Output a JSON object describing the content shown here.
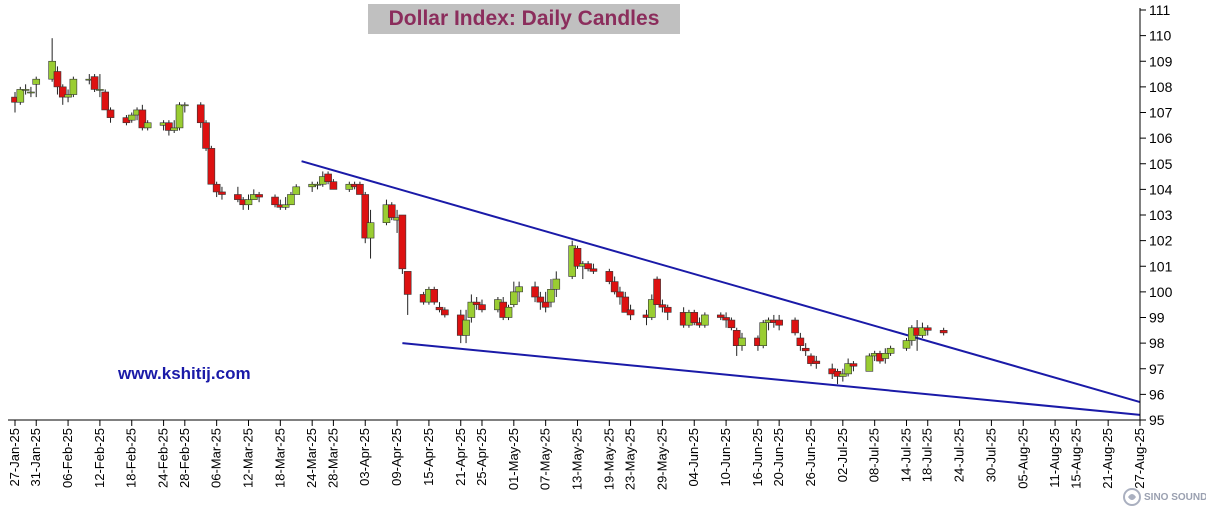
{
  "chart_data": {
    "type": "candlestick",
    "title": "Dollar Index: Daily Candles",
    "ylim": [
      95,
      111
    ],
    "y_ticks": [
      95,
      96,
      97,
      98,
      99,
      100,
      101,
      102,
      103,
      104,
      105,
      106,
      107,
      108,
      109,
      110,
      111
    ],
    "y_axis_side": "right",
    "grid": false,
    "x_range": [
      "2025-01-27",
      "2025-08-27"
    ],
    "x_tick_labels": [
      "27-Jan-25",
      "31-Jan-25",
      "06-Feb-25",
      "12-Feb-25",
      "18-Feb-25",
      "24-Feb-25",
      "28-Feb-25",
      "06-Mar-25",
      "12-Mar-25",
      "18-Mar-25",
      "24-Mar-25",
      "28-Mar-25",
      "03-Apr-25",
      "09-Apr-25",
      "15-Apr-25",
      "21-Apr-25",
      "25-Apr-25",
      "01-May-25",
      "07-May-25",
      "13-May-25",
      "19-May-25",
      "23-May-25",
      "29-May-25",
      "04-Jun-25",
      "10-Jun-25",
      "16-Jun-25",
      "20-Jun-25",
      "26-Jun-25",
      "02-Jul-25",
      "08-Jul-25",
      "14-Jul-25",
      "18-Jul-25",
      "24-Jul-25",
      "30-Jul-25",
      "05-Aug-25",
      "11-Aug-25",
      "15-Aug-25",
      "21-Aug-25",
      "27-Aug-25"
    ],
    "bullish_color": "#9acd32",
    "bearish_color": "#dd1111",
    "trendline_color": "#1a1aa8",
    "candles": [
      [
        "2025-01-27",
        107.6,
        107.8,
        107.0,
        107.4
      ],
      [
        "2025-01-28",
        107.4,
        108.0,
        107.3,
        107.9
      ],
      [
        "2025-01-29",
        107.9,
        108.1,
        107.7,
        107.9
      ],
      [
        "2025-01-30",
        107.8,
        108.0,
        107.6,
        107.8
      ],
      [
        "2025-01-31",
        108.1,
        108.4,
        107.6,
        108.3
      ],
      [
        "2025-02-03",
        108.3,
        109.9,
        108.2,
        109.0
      ],
      [
        "2025-02-04",
        108.6,
        108.8,
        107.7,
        108.0
      ],
      [
        "2025-02-05",
        108.0,
        108.1,
        107.3,
        107.6
      ],
      [
        "2025-02-06",
        107.6,
        107.9,
        107.4,
        107.7
      ],
      [
        "2025-02-07",
        107.7,
        108.4,
        107.6,
        108.3
      ],
      [
        "2025-02-10",
        108.3,
        108.5,
        108.1,
        108.3
      ],
      [
        "2025-02-11",
        108.4,
        108.5,
        107.8,
        107.9
      ],
      [
        "2025-02-12",
        107.9,
        108.5,
        107.6,
        107.9
      ],
      [
        "2025-02-13",
        107.8,
        107.9,
        107.1,
        107.1
      ],
      [
        "2025-02-14",
        107.1,
        107.2,
        106.6,
        106.8
      ],
      [
        "2025-02-17",
        106.8,
        106.9,
        106.5,
        106.6
      ],
      [
        "2025-02-18",
        106.7,
        107.0,
        106.6,
        106.9
      ],
      [
        "2025-02-19",
        106.9,
        107.2,
        106.7,
        107.1
      ],
      [
        "2025-02-20",
        107.1,
        107.3,
        106.3,
        106.4
      ],
      [
        "2025-02-21",
        106.4,
        106.7,
        106.3,
        106.6
      ],
      [
        "2025-02-24",
        106.5,
        106.7,
        106.3,
        106.6
      ],
      [
        "2025-02-25",
        106.6,
        106.7,
        106.1,
        106.3
      ],
      [
        "2025-02-26",
        106.3,
        106.7,
        106.2,
        106.4
      ],
      [
        "2025-02-27",
        106.4,
        107.4,
        106.3,
        107.3
      ],
      [
        "2025-02-28",
        107.3,
        107.4,
        107.0,
        107.3
      ],
      [
        "2025-03-03",
        107.3,
        107.4,
        106.4,
        106.6
      ],
      [
        "2025-03-04",
        106.6,
        106.7,
        105.5,
        105.6
      ],
      [
        "2025-03-05",
        105.6,
        105.7,
        104.2,
        104.2
      ],
      [
        "2025-03-06",
        104.2,
        104.3,
        103.7,
        103.9
      ],
      [
        "2025-03-07",
        103.9,
        104.1,
        103.6,
        103.8
      ],
      [
        "2025-03-10",
        103.8,
        104.1,
        103.5,
        103.6
      ],
      [
        "2025-03-11",
        103.6,
        103.7,
        103.2,
        103.4
      ],
      [
        "2025-03-12",
        103.4,
        103.8,
        103.2,
        103.6
      ],
      [
        "2025-03-13",
        103.6,
        104.0,
        103.6,
        103.8
      ],
      [
        "2025-03-14",
        103.8,
        103.9,
        103.5,
        103.7
      ],
      [
        "2025-03-17",
        103.7,
        103.8,
        103.3,
        103.4
      ],
      [
        "2025-03-18",
        103.4,
        103.6,
        103.2,
        103.3
      ],
      [
        "2025-03-19",
        103.3,
        103.7,
        103.2,
        103.4
      ],
      [
        "2025-03-20",
        103.4,
        103.9,
        103.4,
        103.8
      ],
      [
        "2025-03-21",
        103.8,
        104.2,
        103.8,
        104.1
      ],
      [
        "2025-03-24",
        104.1,
        104.3,
        103.9,
        104.2
      ],
      [
        "2025-03-25",
        104.2,
        104.3,
        104.0,
        104.2
      ],
      [
        "2025-03-26",
        104.2,
        104.7,
        104.1,
        104.5
      ],
      [
        "2025-03-27",
        104.6,
        104.7,
        104.2,
        104.3
      ],
      [
        "2025-03-28",
        104.3,
        104.4,
        104.0,
        104.0
      ],
      [
        "2025-03-31",
        104.0,
        104.3,
        103.9,
        104.2
      ],
      [
        "2025-04-01",
        104.2,
        104.3,
        104.0,
        104.1
      ],
      [
        "2025-04-02",
        104.2,
        104.3,
        103.9,
        103.8
      ],
      [
        "2025-04-03",
        103.8,
        103.9,
        101.9,
        102.1
      ],
      [
        "2025-04-04",
        102.1,
        103.2,
        101.3,
        102.7
      ],
      [
        "2025-04-07",
        102.7,
        103.6,
        102.6,
        103.4
      ],
      [
        "2025-04-08",
        103.4,
        103.5,
        102.8,
        102.9
      ],
      [
        "2025-04-09",
        102.8,
        103.2,
        102.3,
        102.9
      ],
      [
        "2025-04-10",
        103.0,
        103.0,
        100.7,
        100.9
      ],
      [
        "2025-04-11",
        100.8,
        100.8,
        99.1,
        99.9
      ],
      [
        "2025-04-14",
        99.9,
        100.0,
        99.5,
        99.6
      ],
      [
        "2025-04-15",
        99.6,
        100.2,
        99.5,
        100.1
      ],
      [
        "2025-04-16",
        100.1,
        100.2,
        99.5,
        99.6
      ],
      [
        "2025-04-17",
        99.4,
        99.6,
        99.2,
        99.3
      ],
      [
        "2025-04-18",
        99.3,
        99.4,
        99.0,
        99.1
      ],
      [
        "2025-04-21",
        99.1,
        99.3,
        98.0,
        98.3
      ],
      [
        "2025-04-22",
        98.3,
        99.3,
        98.0,
        98.9
      ],
      [
        "2025-04-23",
        99.0,
        99.9,
        98.8,
        99.6
      ],
      [
        "2025-04-24",
        99.6,
        99.8,
        99.3,
        99.5
      ],
      [
        "2025-04-25",
        99.5,
        99.7,
        99.2,
        99.3
      ],
      [
        "2025-04-28",
        99.3,
        99.8,
        99.2,
        99.7
      ],
      [
        "2025-04-29",
        99.6,
        99.8,
        98.9,
        99.0
      ],
      [
        "2025-04-30",
        99.0,
        99.5,
        98.9,
        99.4
      ],
      [
        "2025-05-01",
        99.5,
        100.4,
        99.4,
        100.0
      ],
      [
        "2025-05-02",
        100.0,
        100.4,
        99.6,
        100.2
      ],
      [
        "2025-05-05",
        100.2,
        100.4,
        99.6,
        99.8
      ],
      [
        "2025-05-06",
        99.8,
        100.0,
        99.3,
        99.6
      ],
      [
        "2025-05-07",
        99.6,
        100.0,
        99.2,
        99.4
      ],
      [
        "2025-05-08",
        99.6,
        100.5,
        99.4,
        100.1
      ],
      [
        "2025-05-09",
        100.1,
        100.8,
        99.8,
        100.5
      ],
      [
        "2025-05-12",
        100.6,
        102.0,
        100.5,
        101.8
      ],
      [
        "2025-05-13",
        101.7,
        101.8,
        100.9,
        101.0
      ],
      [
        "2025-05-14",
        101.0,
        101.2,
        100.5,
        101.1
      ],
      [
        "2025-05-15",
        101.1,
        101.2,
        100.8,
        100.9
      ],
      [
        "2025-05-16",
        100.9,
        101.1,
        100.7,
        100.8
      ],
      [
        "2025-05-19",
        100.8,
        100.9,
        100.3,
        100.4
      ],
      [
        "2025-05-20",
        100.4,
        100.6,
        99.9,
        100.0
      ],
      [
        "2025-05-21",
        100.0,
        100.2,
        99.5,
        99.8
      ],
      [
        "2025-05-22",
        99.8,
        100.0,
        99.2,
        99.2
      ],
      [
        "2025-05-23",
        99.3,
        99.5,
        98.9,
        99.1
      ],
      [
        "2025-05-26",
        99.1,
        99.3,
        98.7,
        99.0
      ],
      [
        "2025-05-27",
        99.0,
        99.9,
        98.9,
        99.7
      ],
      [
        "2025-05-28",
        100.5,
        100.6,
        99.5,
        99.5
      ],
      [
        "2025-05-29",
        99.5,
        99.7,
        99.2,
        99.4
      ],
      [
        "2025-05-30",
        99.4,
        99.5,
        98.9,
        99.2
      ],
      [
        "2025-06-02",
        99.2,
        99.4,
        98.6,
        98.7
      ],
      [
        "2025-06-03",
        98.7,
        99.3,
        98.6,
        99.2
      ],
      [
        "2025-06-04",
        99.2,
        99.3,
        98.7,
        98.8
      ],
      [
        "2025-06-05",
        98.8,
        99.0,
        98.6,
        98.7
      ],
      [
        "2025-06-06",
        98.7,
        99.2,
        98.6,
        99.1
      ],
      [
        "2025-06-09",
        99.1,
        99.2,
        98.9,
        99.0
      ],
      [
        "2025-06-10",
        99.0,
        99.2,
        98.6,
        98.9
      ],
      [
        "2025-06-11",
        98.9,
        99.0,
        98.5,
        98.6
      ],
      [
        "2025-06-12",
        98.5,
        98.6,
        97.5,
        97.9
      ],
      [
        "2025-06-13",
        97.9,
        98.4,
        97.7,
        98.2
      ],
      [
        "2025-06-16",
        98.2,
        98.3,
        97.7,
        97.9
      ],
      [
        "2025-06-17",
        97.9,
        98.9,
        97.8,
        98.8
      ],
      [
        "2025-06-18",
        98.8,
        99.0,
        98.5,
        98.9
      ],
      [
        "2025-06-19",
        98.9,
        99.1,
        98.6,
        98.8
      ],
      [
        "2025-06-20",
        98.9,
        99.1,
        98.5,
        98.7
      ],
      [
        "2025-06-23",
        98.9,
        99.0,
        98.3,
        98.4
      ],
      [
        "2025-06-24",
        98.2,
        98.4,
        97.7,
        97.9
      ],
      [
        "2025-06-25",
        97.8,
        98.0,
        97.5,
        97.7
      ],
      [
        "2025-06-26",
        97.5,
        97.6,
        97.1,
        97.2
      ],
      [
        "2025-06-27",
        97.3,
        97.5,
        97.0,
        97.2
      ],
      [
        "2025-06-30",
        97.0,
        97.2,
        96.6,
        96.8
      ],
      [
        "2025-07-01",
        96.9,
        97.0,
        96.4,
        96.7
      ],
      [
        "2025-07-02",
        96.7,
        97.0,
        96.5,
        96.8
      ],
      [
        "2025-07-03",
        96.8,
        97.4,
        96.7,
        97.2
      ],
      [
        "2025-07-04",
        97.2,
        97.3,
        96.9,
        97.1
      ],
      [
        "2025-07-07",
        96.9,
        97.6,
        96.9,
        97.5
      ],
      [
        "2025-07-08",
        97.5,
        97.7,
        97.3,
        97.6
      ],
      [
        "2025-07-09",
        97.6,
        97.7,
        97.2,
        97.3
      ],
      [
        "2025-07-10",
        97.4,
        97.8,
        97.2,
        97.6
      ],
      [
        "2025-07-11",
        97.6,
        97.9,
        97.5,
        97.8
      ],
      [
        "2025-07-14",
        97.8,
        98.2,
        97.7,
        98.1
      ],
      [
        "2025-07-15",
        98.1,
        98.7,
        97.9,
        98.6
      ],
      [
        "2025-07-16",
        98.6,
        98.9,
        97.7,
        98.3
      ],
      [
        "2025-07-17",
        98.3,
        98.8,
        98.2,
        98.6
      ],
      [
        "2025-07-18",
        98.6,
        98.7,
        98.3,
        98.5
      ],
      [
        "2025-07-21",
        98.5,
        98.6,
        98.3,
        98.4
      ]
    ],
    "trendlines": [
      {
        "start": [
          "2025-03-22",
          105.1
        ],
        "end": [
          "2025-08-27",
          95.7
        ]
      },
      {
        "start": [
          "2025-04-10",
          98.0
        ],
        "end": [
          "2025-08-27",
          95.2
        ]
      }
    ]
  },
  "watermark": "www.kshitij.com",
  "logo": {
    "line1": "SINO SOUND"
  }
}
